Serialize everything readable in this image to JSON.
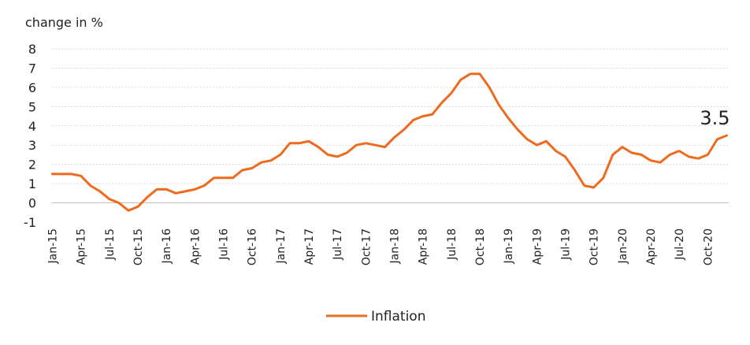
{
  "chart_data": {
    "type": "line",
    "ylabel": "change in %",
    "ylim": [
      -1,
      8
    ],
    "yticks": [
      "8",
      "7",
      "6",
      "5",
      "4",
      "3",
      "2",
      "1",
      "0",
      "-1"
    ],
    "ytick_values": [
      8,
      7,
      6,
      5,
      4,
      3,
      2,
      1,
      0,
      -1
    ],
    "grid": true,
    "legend_position": "bottom-center",
    "line_color": "#ee6a1e",
    "xticks": [
      "Jan-15",
      "Apr-15",
      "Jul-15",
      "Oct-15",
      "Jan-16",
      "Apr-16",
      "Jul-16",
      "Oct-16",
      "Jan-17",
      "Apr-17",
      "Jul-17",
      "Oct-17",
      "Jan-18",
      "Apr-18",
      "Jul-18",
      "Oct-18",
      "Jan-19",
      "Apr-19",
      "Jul-19",
      "Oct-19",
      "Jan-20",
      "Apr-20",
      "Jul-20",
      "Oct-20"
    ],
    "end_label": "3.5",
    "series": [
      {
        "name": "Inflation",
        "x": [
          "Jan-15",
          "Feb-15",
          "Mar-15",
          "Apr-15",
          "May-15",
          "Jun-15",
          "Jul-15",
          "Aug-15",
          "Sep-15",
          "Oct-15",
          "Nov-15",
          "Dec-15",
          "Jan-16",
          "Feb-16",
          "Mar-16",
          "Apr-16",
          "May-16",
          "Jun-16",
          "Jul-16",
          "Aug-16",
          "Sep-16",
          "Oct-16",
          "Nov-16",
          "Dec-16",
          "Jan-17",
          "Feb-17",
          "Mar-17",
          "Apr-17",
          "May-17",
          "Jun-17",
          "Jul-17",
          "Aug-17",
          "Sep-17",
          "Oct-17",
          "Nov-17",
          "Dec-17",
          "Jan-18",
          "Feb-18",
          "Mar-18",
          "Apr-18",
          "May-18",
          "Jun-18",
          "Jul-18",
          "Aug-18",
          "Sep-18",
          "Oct-18",
          "Nov-18",
          "Dec-18",
          "Jan-19",
          "Feb-19",
          "Mar-19",
          "Apr-19",
          "May-19",
          "Jun-19",
          "Jul-19",
          "Aug-19",
          "Sep-19",
          "Oct-19",
          "Nov-19",
          "Dec-19",
          "Jan-20",
          "Feb-20",
          "Mar-20",
          "Apr-20",
          "May-20",
          "Jun-20",
          "Jul-20",
          "Aug-20",
          "Sep-20",
          "Oct-20",
          "Nov-20",
          "Dec-20"
        ],
        "values": [
          1.5,
          1.5,
          1.5,
          1.4,
          0.9,
          0.6,
          0.2,
          0.0,
          -0.4,
          -0.2,
          0.3,
          0.7,
          0.7,
          0.5,
          0.6,
          0.7,
          0.9,
          1.3,
          1.3,
          1.3,
          1.7,
          1.8,
          2.1,
          2.2,
          2.5,
          3.1,
          3.1,
          3.2,
          2.9,
          2.5,
          2.4,
          2.6,
          3.0,
          3.1,
          3.0,
          2.9,
          3.4,
          3.8,
          4.3,
          4.5,
          4.6,
          5.2,
          5.7,
          6.4,
          6.7,
          6.7,
          6.0,
          5.1,
          4.4,
          3.8,
          3.3,
          3.0,
          3.2,
          2.7,
          2.4,
          1.7,
          0.9,
          0.8,
          1.3,
          2.5,
          2.9,
          2.6,
          2.5,
          2.2,
          2.1,
          2.5,
          2.7,
          2.4,
          2.3,
          2.5,
          3.3,
          3.5
        ]
      }
    ]
  }
}
